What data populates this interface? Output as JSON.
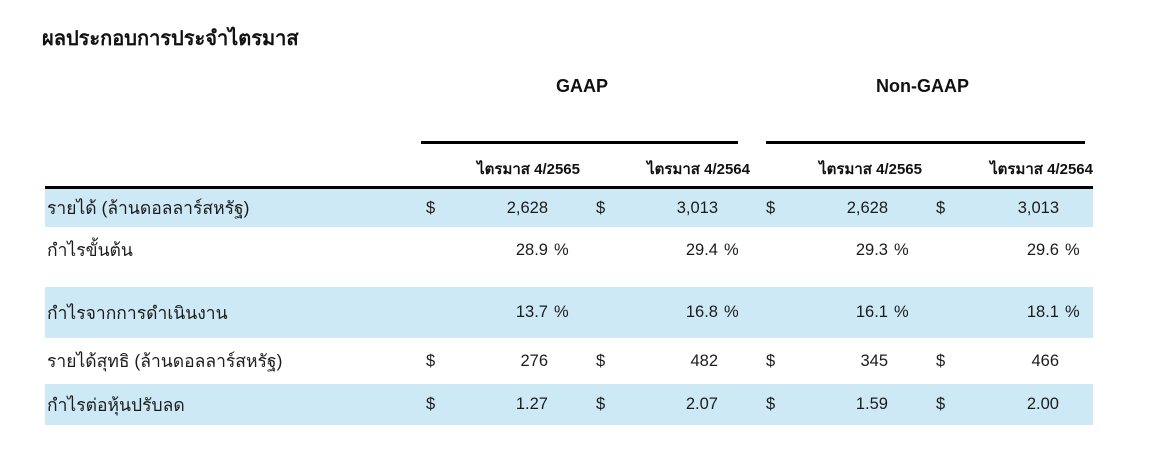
{
  "title": "ผลประกอบการประจำไตรมาส",
  "table": {
    "highlight_color": "#cde9f6",
    "groups": [
      {
        "label": "GAAP"
      },
      {
        "label": "Non-GAAP"
      }
    ],
    "column_headers": [
      "ไตรมาส 4/2565",
      "ไตรมาส 4/2564",
      "ไตรมาส 4/2565",
      "ไตรมาส 4/2564"
    ],
    "rows": [
      {
        "label": "รายได้ (ล้านดอลลาร์สหรัฐ)",
        "currency": "$",
        "suffix": "",
        "highlight": true,
        "values": [
          "2,628",
          "3,013",
          "2,628",
          "3,013"
        ]
      },
      {
        "label": "กำไรขั้นต้น",
        "currency": "",
        "suffix": "%",
        "highlight": false,
        "values": [
          "28.9",
          "29.4",
          "29.3",
          "29.6"
        ]
      },
      {
        "label": "กำไรจากการดำเนินงาน",
        "currency": "",
        "suffix": "%",
        "highlight": true,
        "values": [
          "13.7",
          "16.8",
          "16.1",
          "18.1"
        ]
      },
      {
        "label": "รายได้สุทธิ (ล้านดอลลาร์สหรัฐ)",
        "currency": "$",
        "suffix": "",
        "highlight": false,
        "values": [
          "276",
          "482",
          "345",
          "466"
        ]
      },
      {
        "label": "กำไรต่อหุ้นปรับลด",
        "currency": "$",
        "suffix": "",
        "highlight": true,
        "values": [
          "1.27",
          "2.07",
          "1.59",
          "2.00"
        ]
      }
    ]
  }
}
